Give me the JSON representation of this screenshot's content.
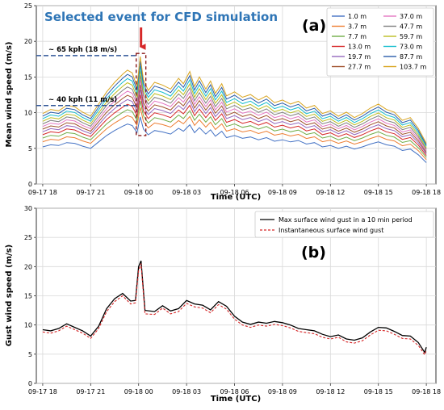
{
  "chart_data": [
    {
      "type": "line",
      "panel_label": "(a)",
      "title_annotation": "Selected event for CFD simulation",
      "xlabel": "Time (UTC)",
      "ylabel": "Mean wind speed (m/s)",
      "ylim": [
        0,
        25
      ],
      "yticks": [
        "0",
        "5",
        "10",
        "15",
        "20",
        "25"
      ],
      "xlim": [
        -0.4,
        24.6
      ],
      "xticks": [
        {
          "x": 0,
          "label": "09-17 18"
        },
        {
          "x": 3,
          "label": "09-17 21"
        },
        {
          "x": 6,
          "label": "09-18 00"
        },
        {
          "x": 9,
          "label": "09-18 03"
        },
        {
          "x": 12,
          "label": "09-18 06"
        },
        {
          "x": 15,
          "label": "09-18 09"
        },
        {
          "x": 18,
          "label": "09-18 12"
        },
        {
          "x": 21,
          "label": "09-18 15"
        },
        {
          "x": 24,
          "label": "09-18 18"
        }
      ],
      "grid": true,
      "legend_placement": "top-right",
      "annotations": [
        {
          "text": "~ 65 kph (18 m/s)",
          "y": 18
        },
        {
          "text": "~ 40 kph (11 m/s)",
          "y": 11
        }
      ],
      "base_profile": {
        "x": [
          0,
          0.5,
          1,
          1.5,
          2,
          2.5,
          3,
          3.5,
          4,
          4.5,
          5,
          5.3,
          5.6,
          5.9,
          6.1,
          6.3,
          6.6,
          7,
          7.5,
          8,
          8.5,
          8.8,
          9.2,
          9.5,
          9.8,
          10.2,
          10.5,
          10.8,
          11.2,
          11.5,
          12,
          12.5,
          13,
          13.5,
          14,
          14.5,
          15,
          15.5,
          16,
          16.5,
          17,
          17.5,
          18,
          18.5,
          19,
          19.5,
          20,
          20.5,
          21,
          21.5,
          22,
          22.5,
          23,
          23.5,
          24
        ],
        "y": [
          5.2,
          5.5,
          5.4,
          5.8,
          5.7,
          5.3,
          5.0,
          5.9,
          6.8,
          7.5,
          8.1,
          8.4,
          8.2,
          7.2,
          9.4,
          7.7,
          6.9,
          7.5,
          7.3,
          7.0,
          7.8,
          7.4,
          8.3,
          7.2,
          7.9,
          7.0,
          7.6,
          6.7,
          7.4,
          6.5,
          6.8,
          6.4,
          6.6,
          6.2,
          6.5,
          6.0,
          6.2,
          5.9,
          6.1,
          5.6,
          5.8,
          5.2,
          5.4,
          5.0,
          5.3,
          4.9,
          5.2,
          5.6,
          5.9,
          5.5,
          5.3,
          4.7,
          4.9,
          4.1,
          3.0
        ]
      },
      "series": [
        {
          "name": "1.0 m",
          "color": "#4472c4",
          "scale": 1.0
        },
        {
          "name": "3.7 m",
          "color": "#ed7d31",
          "scale": 1.14
        },
        {
          "name": "7.7 m",
          "color": "#70ad47",
          "scale": 1.24
        },
        {
          "name": "13.0 m",
          "color": "#d62728",
          "scale": 1.33
        },
        {
          "name": "19.7 m",
          "color": "#9467bd",
          "scale": 1.41
        },
        {
          "name": "27.7 m",
          "color": "#a0522d",
          "scale": 1.48
        },
        {
          "name": "37.0 m",
          "color": "#e377c2",
          "scale": 1.55
        },
        {
          "name": "47.7 m",
          "color": "#7f7f7f",
          "scale": 1.62
        },
        {
          "name": "59.7 m",
          "color": "#bcbd22",
          "scale": 1.69
        },
        {
          "name": "73.0 m",
          "color": "#17becf",
          "scale": 1.76
        },
        {
          "name": "87.7 m",
          "color": "#2a5caa",
          "scale": 1.83
        },
        {
          "name": "103.7 m",
          "color": "#d9a520",
          "scale": 1.9
        }
      ]
    },
    {
      "type": "line",
      "panel_label": "(b)",
      "xlabel": "Time (UTC)",
      "ylabel": "Gust wind speed (m/s)",
      "ylim": [
        0,
        30
      ],
      "yticks": [
        "0",
        "5",
        "10",
        "15",
        "20",
        "25",
        "30"
      ],
      "xlim": [
        -0.4,
        24.6
      ],
      "xticks": [
        {
          "x": 0,
          "label": "09-17 18"
        },
        {
          "x": 3,
          "label": "09-17 21"
        },
        {
          "x": 6,
          "label": "09-18 00"
        },
        {
          "x": 9,
          "label": "09-18 03"
        },
        {
          "x": 12,
          "label": "09-18 06"
        },
        {
          "x": 15,
          "label": "09-18 09"
        },
        {
          "x": 18,
          "label": "09-18 12"
        },
        {
          "x": 21,
          "label": "09-18 15"
        },
        {
          "x": 24,
          "label": "09-18 18"
        }
      ],
      "grid": true,
      "legend_placement": "top-right",
      "series": [
        {
          "name": "Max surface wind gust in a 10 min period",
          "color": "#000000",
          "dash": "solid",
          "x": [
            0,
            0.5,
            1,
            1.5,
            2,
            2.5,
            3,
            3.5,
            4,
            4.5,
            5,
            5.5,
            5.8,
            6.0,
            6.15,
            6.4,
            7,
            7.5,
            8,
            8.5,
            9,
            9.5,
            10,
            10.5,
            11,
            11.5,
            12,
            12.5,
            13,
            13.5,
            14,
            14.5,
            15,
            15.5,
            16,
            16.5,
            17,
            17.5,
            18,
            18.5,
            19,
            19.5,
            20,
            20.5,
            21,
            21.5,
            22,
            22.5,
            23,
            23.5,
            23.9,
            24
          ],
          "y": [
            9.2,
            9.0,
            9.4,
            10.2,
            9.6,
            9.0,
            8.1,
            9.8,
            12.8,
            14.5,
            15.4,
            14.1,
            14.2,
            20.0,
            21.0,
            12.5,
            12.3,
            13.3,
            12.4,
            12.8,
            14.2,
            13.6,
            13.4,
            12.6,
            14.0,
            13.2,
            11.5,
            10.5,
            10.1,
            10.5,
            10.3,
            10.6,
            10.4,
            10.0,
            9.4,
            9.2,
            9.0,
            8.4,
            8.0,
            8.3,
            7.6,
            7.4,
            7.8,
            8.8,
            9.6,
            9.5,
            8.9,
            8.2,
            8.1,
            7.0,
            5.3,
            6.2
          ]
        },
        {
          "name": "Instantaneous surface wind gust",
          "color": "#d62728",
          "dash": "dashed",
          "x": [
            0,
            0.5,
            1,
            1.5,
            2,
            2.5,
            3,
            3.5,
            4,
            4.5,
            5,
            5.5,
            5.8,
            6.0,
            6.15,
            6.4,
            7,
            7.5,
            8,
            8.5,
            9,
            9.5,
            10,
            10.5,
            11,
            11.5,
            12,
            12.5,
            13,
            13.5,
            14,
            14.5,
            15,
            15.5,
            16,
            16.5,
            17,
            17.5,
            18,
            18.5,
            19,
            19.5,
            20,
            20.5,
            21,
            21.5,
            22,
            22.5,
            23,
            23.5,
            23.9,
            24
          ],
          "y": [
            8.8,
            8.6,
            9.0,
            9.8,
            9.2,
            8.6,
            7.7,
            9.4,
            12.3,
            14.0,
            15.0,
            13.6,
            13.8,
            19.3,
            20.5,
            11.9,
            11.8,
            12.9,
            11.9,
            12.3,
            13.7,
            13.1,
            12.9,
            12.1,
            13.5,
            12.7,
            11.0,
            10.0,
            9.6,
            10.0,
            9.8,
            10.1,
            9.9,
            9.5,
            8.9,
            8.7,
            8.5,
            7.9,
            7.6,
            7.9,
            7.1,
            6.9,
            7.3,
            8.3,
            9.1,
            9.0,
            8.4,
            7.7,
            7.6,
            6.5,
            4.9,
            5.7
          ]
        }
      ]
    }
  ]
}
